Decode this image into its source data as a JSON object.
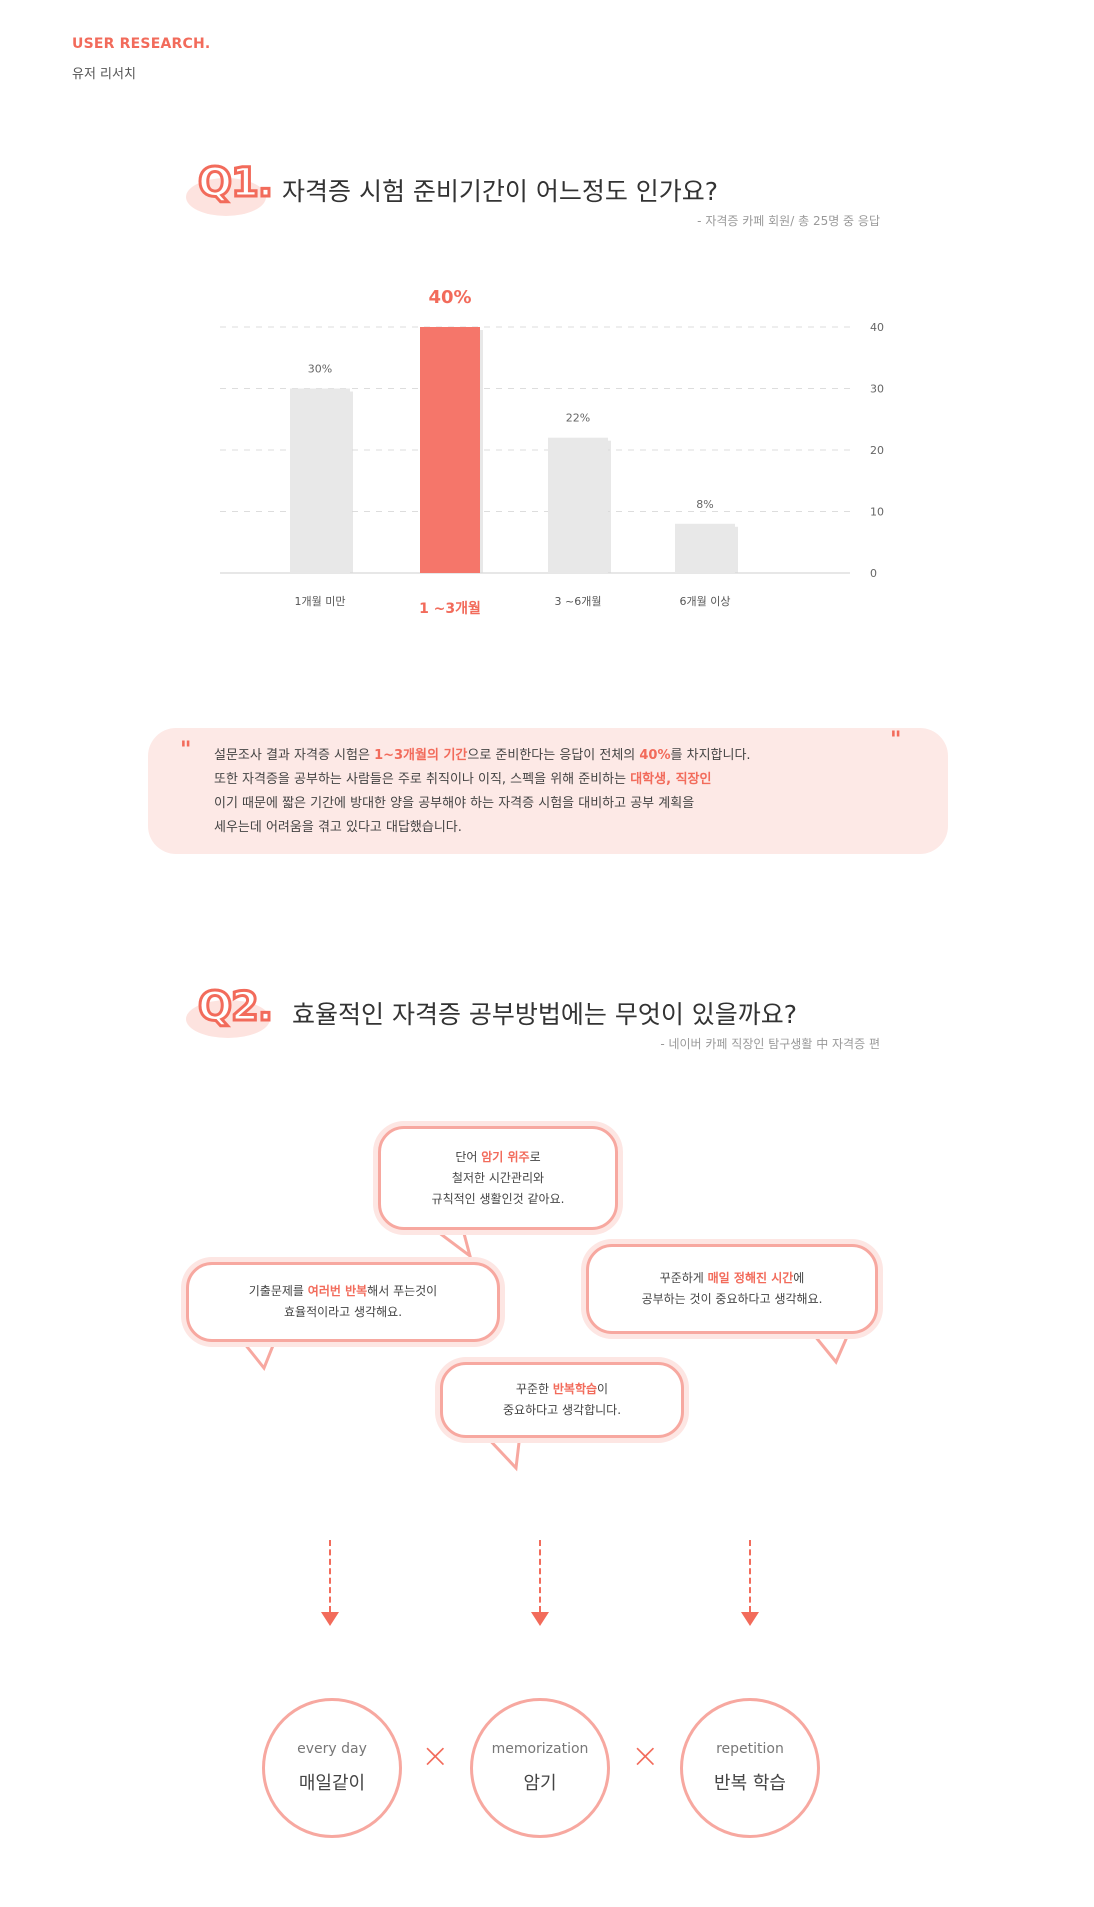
{
  "header": {
    "title": "USER RESEARCH.",
    "subtitle": "유저 리서치"
  },
  "q1": {
    "badge": "Q1.",
    "question": "자격증 시험 준비기간이 어느정도 인가요?",
    "source": "- 자격증 카페 회원/ 총 25명 중 응답"
  },
  "chart_data": {
    "type": "bar",
    "categories": [
      "1개월 미만",
      "1 ~3개월",
      "3 ~6개월",
      "6개월 이상"
    ],
    "values": [
      30,
      40,
      22,
      8
    ],
    "value_labels": [
      "30%",
      "40%",
      "22%",
      "8%"
    ],
    "highlight_index": 1,
    "yticks": [
      "40",
      "30",
      "20",
      "10",
      "0"
    ],
    "ylim": [
      0,
      40
    ],
    "grid": true,
    "colors": {
      "bar": "#e8e8e8",
      "highlight": "#f5766a"
    }
  },
  "quote": {
    "open_mark": "\"",
    "close_mark": "\"",
    "line1_a": "설문조사 결과 자격증 시험은 ",
    "line1_hl1": "1~3개월의 기간",
    "line1_b": "으로 준비한다는 응답이 전체의 ",
    "line1_hl2": "40%",
    "line1_c": "를 차지합니다.",
    "line2_a": "또한 자격증을 공부하는 사람들은 주로 취직이나 이직, 스펙을 위해 준비하는 ",
    "line2_hl": "대학생, 직장인",
    "line3": "이기 때문에 짧은 기간에 방대한 양을 공부해야 하는 자격증 시험을 대비하고 공부 계획을",
    "line4": "세우는데 어려움을 겪고 있다고 대답했습니다."
  },
  "q2": {
    "badge": "Q2.",
    "question": "효율적인 자격증 공부방법에는 무엇이 있을까요?",
    "source": "- 네이버 카페 직장인 탐구생활 中 자격증 편"
  },
  "bubbles": {
    "b1": {
      "a": "단어 ",
      "hl": "암기 위주",
      "b": "로",
      "l2": "철저한 시간관리와",
      "l3": "규칙적인 생활인것 같아요."
    },
    "b2": {
      "a": "기출문제를 ",
      "hl": "여러번 반복",
      "b": "해서 푸는것이",
      "l2": "효율적이라고 생각해요."
    },
    "b3": {
      "a": "꾸준하게 ",
      "hl": "매일 정해진 시간",
      "b": "에",
      "l2": "공부하는 것이 중요하다고 생각해요."
    },
    "b4": {
      "a": "꾸준한 ",
      "hl": "반복학습",
      "b": "이",
      "l2": "중요하다고 생각합니다."
    }
  },
  "keywords": [
    {
      "en": "every day",
      "ko": "매일같이"
    },
    {
      "en": "memorization",
      "ko": "암기"
    },
    {
      "en": "repetition",
      "ko": "반복 학습"
    }
  ],
  "times_symbol": "×"
}
